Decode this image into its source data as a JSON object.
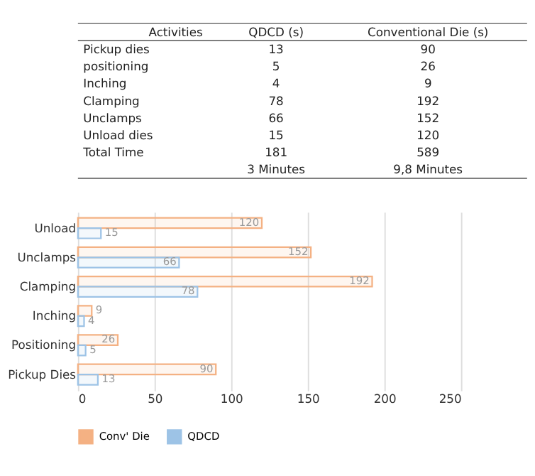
{
  "chart_data": [
    {
      "type": "other",
      "xlabel": "Activities",
      "categories": [
        "Pickup dies",
        "positioning",
        "Inching",
        "Clamping",
        "Unclamps",
        "Unload dies",
        "Total Time",
        null
      ],
      "series": [
        {
          "name": "QDCD (s)",
          "values": [
            13,
            5,
            4,
            78,
            66,
            15,
            181,
            null
          ],
          "value_labels": [
            "13",
            "5",
            "4",
            "78",
            "66",
            "15",
            "181",
            "3 Minutes"
          ]
        },
        {
          "name": "Conventional Die (s)",
          "values": [
            90,
            26,
            9,
            192,
            152,
            120,
            589,
            null
          ],
          "value_labels": [
            "90",
            "26",
            "9",
            "192",
            "152",
            "120",
            "589",
            "9,8 Minutes"
          ]
        }
      ]
    },
    {
      "type": "bar",
      "orientation": "horizontal",
      "categories": [
        "Unload",
        "Unclamps",
        "Clamping",
        "Inching",
        "Positioning",
        "Pickup Dies"
      ],
      "series": [
        {
          "name": "Conv' Die",
          "color": "#f4b183",
          "values": [
            120,
            152,
            192,
            9,
            26,
            90
          ]
        },
        {
          "name": "QDCD",
          "color": "#9dc3e6",
          "values": [
            15,
            66,
            78,
            4,
            5,
            13
          ]
        }
      ],
      "xlim": [
        0,
        250
      ],
      "xticks": [
        0,
        50,
        100,
        150,
        200,
        250
      ],
      "grid": "x",
      "legend": "bottom",
      "data_labels": true
    }
  ]
}
